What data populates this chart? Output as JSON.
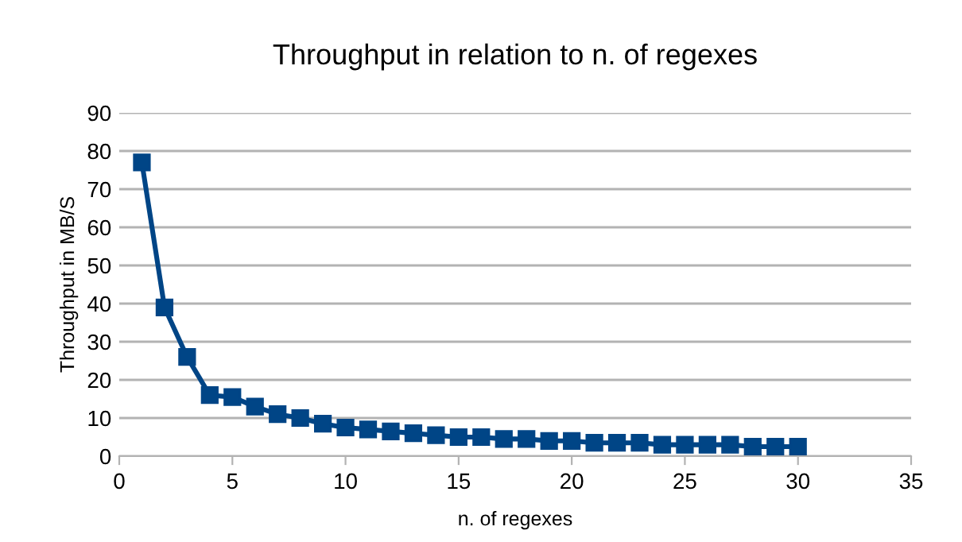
{
  "chart_data": {
    "type": "line",
    "title": "Throughput in relation to n. of regexes",
    "xlabel": "n. of regexes",
    "ylabel": "Throughput in MB/S",
    "x": [
      1,
      2,
      3,
      4,
      5,
      6,
      7,
      8,
      9,
      10,
      11,
      12,
      13,
      14,
      15,
      16,
      17,
      18,
      19,
      20,
      21,
      22,
      23,
      24,
      25,
      26,
      27,
      28,
      29,
      30
    ],
    "series": [
      {
        "color": "#004586",
        "values": [
          77,
          39,
          26,
          16,
          15.5,
          13,
          11,
          10,
          8.5,
          7.5,
          7,
          6.5,
          6,
          5.5,
          5,
          5,
          4.5,
          4.5,
          4,
          4,
          3.5,
          3.5,
          3.5,
          3,
          3,
          3,
          3,
          2.5,
          2.5,
          2.5
        ]
      }
    ],
    "xlim": [
      0,
      35
    ],
    "xticks": [
      0,
      5,
      10,
      15,
      20,
      25,
      30,
      35
    ],
    "ylim": [
      0,
      90
    ],
    "yticks": [
      0,
      10,
      20,
      30,
      40,
      50,
      60,
      70,
      80,
      90
    ],
    "grid": "y",
    "marker": "square",
    "line_style": "solid",
    "legend": false
  }
}
